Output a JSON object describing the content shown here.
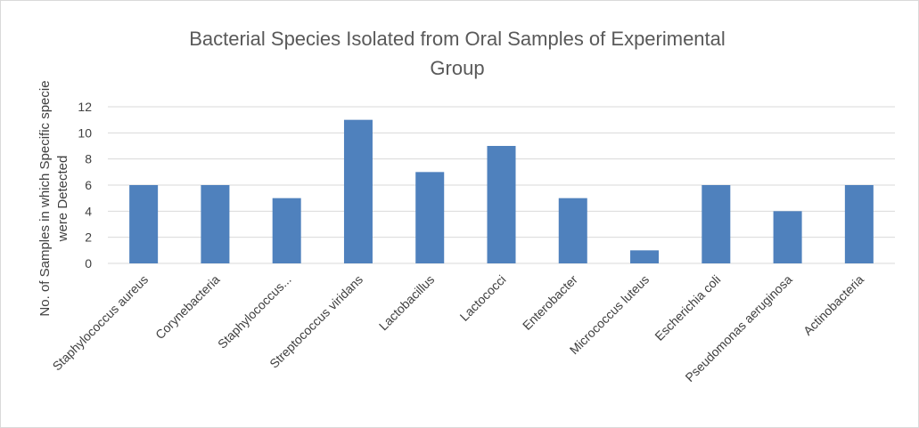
{
  "chart_data": {
    "type": "bar",
    "title_lines": [
      "Bacterial Species Isolated from Oral Samples of Experimental",
      "Group"
    ],
    "ylabel_lines": [
      "No. of Samples in which Specific specie",
      "were Detected"
    ],
    "xlabel": "",
    "categories": [
      "Staphylococcus aureus",
      "Corynebacteria",
      "Staphylococcus...",
      "Streptococcus viridans",
      "Lactobacillus",
      "Lactococci",
      "Enterobacter",
      "Micrococcus luteus",
      "Escherichia coli",
      "Pseudomonas aeruginosa",
      "Actinobacteria"
    ],
    "values": [
      6,
      6,
      5,
      11,
      7,
      9,
      5,
      1,
      6,
      4,
      6
    ],
    "ylim": [
      0,
      12
    ],
    "yticks": [
      "0",
      "2",
      "4",
      "6",
      "8",
      "10",
      "12"
    ],
    "grid": true,
    "legend": "none",
    "bar_color": "#4f81bd"
  }
}
